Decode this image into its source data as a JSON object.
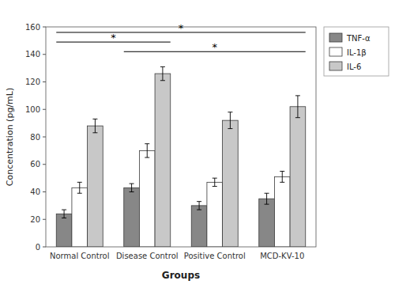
{
  "chart_data": {
    "type": "bar",
    "xlabel": "Groups",
    "ylabel": "Concentration (pg/mL)",
    "categories": [
      "Normal Control",
      "Disease Control",
      "Positive Control",
      "MCD-KV-10"
    ],
    "series": [
      {
        "name": "TNF-α",
        "color": "#878787",
        "values": [
          24,
          43,
          30,
          35
        ],
        "errors": [
          3,
          3,
          3,
          4
        ]
      },
      {
        "name": "IL-1β",
        "color": "#ffffff",
        "values": [
          43,
          70,
          47,
          51
        ],
        "errors": [
          4,
          5,
          3,
          4
        ]
      },
      {
        "name": "IL-6",
        "color": "#c8c8c8",
        "values": [
          88,
          126,
          92,
          102
        ],
        "errors": [
          5,
          5,
          6,
          8
        ]
      }
    ],
    "ylim": [
      0,
      160
    ],
    "yticks": [
      0,
      20,
      40,
      60,
      80,
      100,
      120,
      140,
      160
    ],
    "grid": false,
    "legend": "upper right",
    "annotations": [
      {
        "text": "*",
        "from": "Normal Control",
        "to": "Disease Control",
        "y": 149
      },
      {
        "text": "*",
        "from": "Normal Control",
        "to": "MCD-KV-10",
        "y": 156
      },
      {
        "text": "*",
        "from": "Disease Control",
        "to": "MCD-KV-10",
        "y": 142
      }
    ]
  }
}
